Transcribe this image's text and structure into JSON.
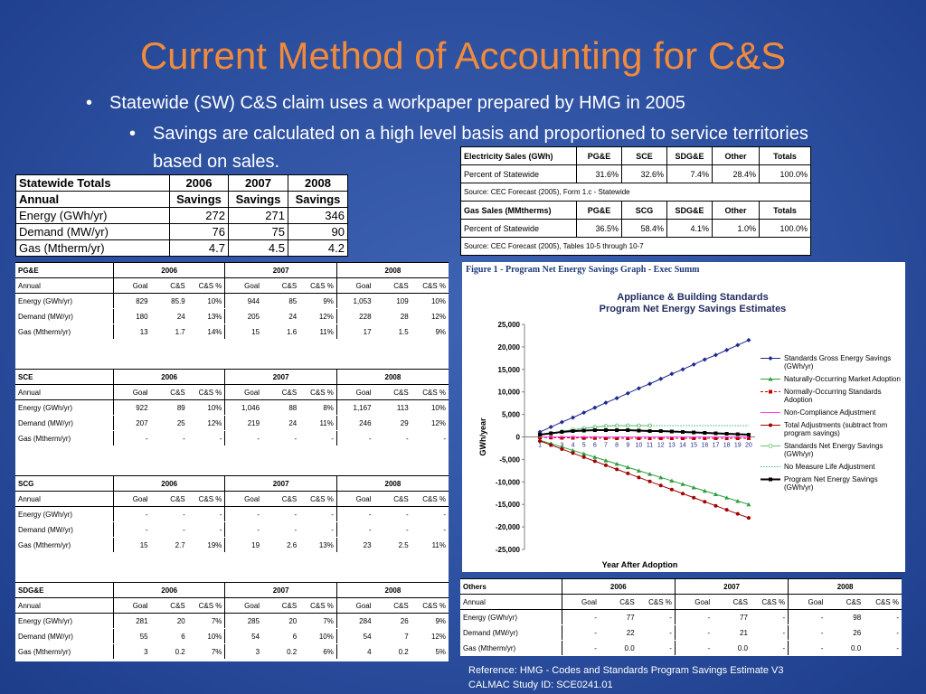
{
  "title": "Current Method of Accounting for C&S",
  "bullets": [
    "Statewide (SW) C&S claim uses a workpaper prepared by HMG in 2005",
    "Savings are calculated on a high level basis and proportioned to service territories based on sales."
  ],
  "statewide_table": {
    "header": [
      [
        "Statewide Totals",
        "2006",
        "2007",
        "2008"
      ],
      [
        "Annual",
        "Savings",
        "Savings",
        "Savings"
      ]
    ],
    "rows": [
      [
        "Energy (GWh/yr)",
        "272",
        "271",
        "346"
      ],
      [
        "Demand (MW/yr)",
        "76",
        "75",
        "90"
      ],
      [
        "Gas (Mtherm/yr)",
        "4.7",
        "4.5",
        "4.2"
      ]
    ]
  },
  "sales_tables": [
    {
      "header": [
        "Electricity Sales (GWh)",
        "PG&E",
        "SCE",
        "SDG&E",
        "Other",
        "Totals"
      ],
      "row": [
        "Percent of Statewide",
        "31.6%",
        "32.6%",
        "7.4%",
        "28.4%",
        "100.0%"
      ],
      "source": "Source:  CEC Forecast (2005), Form 1.c - Statewide"
    },
    {
      "header": [
        "Gas Sales (MMtherms)",
        "PG&E",
        "SCG",
        "SDG&E",
        "Other",
        "Totals"
      ],
      "row": [
        "Percent of Statewide",
        "36.5%",
        "58.4%",
        "4.1%",
        "1.0%",
        "100.0%"
      ],
      "source": "Source:  CEC Forecast (2005), Tables 10-5 through 10-7"
    }
  ],
  "utility_tables": [
    {
      "name": "PG&E",
      "years": [
        "2006",
        "2007",
        "2008"
      ],
      "subheader": [
        "Annual",
        "Goal",
        "C&S",
        "C&S %",
        "Goal",
        "C&S",
        "C&S %",
        "Goal",
        "C&S",
        "C&S %"
      ],
      "rows": [
        [
          "Energy (GWh/yr)",
          "829",
          "85.9",
          "10%",
          "944",
          "85",
          "9%",
          "1,053",
          "109",
          "10%"
        ],
        [
          "Demand (MW/yr)",
          "180",
          "24",
          "13%",
          "205",
          "24",
          "12%",
          "228",
          "28",
          "12%"
        ],
        [
          "Gas (Mtherm/yr)",
          "13",
          "1.7",
          "14%",
          "15",
          "1.6",
          "11%",
          "17",
          "1.5",
          "9%"
        ]
      ]
    },
    {
      "name": "SCE",
      "years": [
        "2006",
        "2007",
        "2008"
      ],
      "subheader": [
        "Annual",
        "Goal",
        "C&S",
        "C&S %",
        "Goal",
        "C&S",
        "C&S %",
        "Goal",
        "C&S",
        "C&S %"
      ],
      "rows": [
        [
          "Energy (GWh/yr)",
          "922",
          "89",
          "10%",
          "1,046",
          "88",
          "8%",
          "1,167",
          "113",
          "10%"
        ],
        [
          "Demand (MW/yr)",
          "207",
          "25",
          "12%",
          "219",
          "24",
          "11%",
          "246",
          "29",
          "12%"
        ],
        [
          "Gas (Mtherm/yr)",
          "-",
          "-",
          "-",
          "-",
          "-",
          "-",
          "-",
          "-",
          "-"
        ]
      ]
    },
    {
      "name": "SCG",
      "years": [
        "2006",
        "2007",
        "2008"
      ],
      "subheader": [
        "Annual",
        "Goal",
        "C&S",
        "C&S %",
        "Goal",
        "C&S",
        "C&S %",
        "Goal",
        "C&S",
        "C&S %"
      ],
      "rows": [
        [
          "Energy (GWh/yr)",
          "-",
          "-",
          "-",
          "-",
          "-",
          "-",
          "-",
          "-",
          "-"
        ],
        [
          "Demand (MW/yr)",
          "-",
          "-",
          "-",
          "-",
          "-",
          "-",
          "-",
          "-",
          "-"
        ],
        [
          "Gas (Mtherm/yr)",
          "15",
          "2.7",
          "19%",
          "19",
          "2.6",
          "13%",
          "23",
          "2.5",
          "11%"
        ]
      ]
    },
    {
      "name": "SDG&E",
      "years": [
        "2006",
        "2007",
        "2008"
      ],
      "subheader": [
        "Annual",
        "Goal",
        "C&S",
        "C&S %",
        "Goal",
        "C&S",
        "C&S %",
        "Goal",
        "C&S",
        "C&S %"
      ],
      "rows": [
        [
          "Energy (GWh/yr)",
          "281",
          "20",
          "7%",
          "285",
          "20",
          "7%",
          "284",
          "26",
          "9%"
        ],
        [
          "Demand (MW/yr)",
          "55",
          "6",
          "10%",
          "54",
          "6",
          "10%",
          "54",
          "7",
          "12%"
        ],
        [
          "Gas (Mtherm/yr)",
          "3",
          "0.2",
          "7%",
          "3",
          "0.2",
          "6%",
          "4",
          "0.2",
          "5%"
        ]
      ]
    }
  ],
  "others_table": {
    "name": "Others",
    "years": [
      "2006",
      "2007",
      "2008"
    ],
    "subheader": [
      "Annual",
      "Goal",
      "C&S",
      "C&S %",
      "Goal",
      "C&S",
      "C&S %",
      "Goal",
      "C&S",
      "C&S %"
    ],
    "rows": [
      [
        "Energy (GWh/yr)",
        "-",
        "77",
        "-",
        "-",
        "77",
        "-",
        "-",
        "98",
        "-"
      ],
      [
        "Demand (MW/yr)",
        "-",
        "22",
        "-",
        "-",
        "21",
        "-",
        "-",
        "26",
        "-"
      ],
      [
        "Gas (Mtherm/yr)",
        "-",
        "0.0",
        "-",
        "-",
        "0.0",
        "-",
        "-",
        "0.0",
        "-"
      ]
    ]
  },
  "chart": {
    "type": "line",
    "caption": "Figure 1 - Program Net Energy Savings Graph - Exec Summ",
    "title": [
      "Appliance & Building Standards",
      "Program Net Energy Savings Estimates"
    ],
    "y_label": "GWh/year",
    "x_label": "Year After Adoption",
    "categories": [
      "1",
      "2",
      "3",
      "4",
      "5",
      "6",
      "7",
      "8",
      "9",
      "10",
      "11",
      "12",
      "13",
      "14",
      "15",
      "16",
      "17",
      "18",
      "19",
      "20"
    ],
    "ylim": [
      -25000,
      25000
    ],
    "yticks": [
      {
        "value": -25000,
        "label": "-25,000"
      },
      {
        "value": -20000,
        "label": "-20,000"
      },
      {
        "value": -15000,
        "label": "-15,000"
      },
      {
        "value": -10000,
        "label": "-10,000"
      },
      {
        "value": -5000,
        "label": "-5,000"
      },
      0,
      {
        "value": 5000,
        "label": "5,000"
      },
      {
        "value": 10000,
        "label": "10,000"
      },
      {
        "value": 15000,
        "label": "15,000"
      },
      {
        "value": 20000,
        "label": "20,000"
      },
      {
        "value": 25000,
        "label": "25,000"
      }
    ],
    "grid": false,
    "series": [
      {
        "name": "Standards Gross Energy Savings (GWh/yr)",
        "color": "#1f2a8f",
        "marker": "diamond",
        "dash": "solid",
        "values": [
          1100,
          2200,
          3300,
          4300,
          5400,
          6500,
          7600,
          8600,
          9700,
          10800,
          11800,
          12900,
          14000,
          15000,
          16100,
          17200,
          18200,
          19300,
          20400,
          21500
        ]
      },
      {
        "name": "Naturally-Occurring Market Adoption",
        "color": "#2e9e3e",
        "marker": "triangle",
        "dash": "solid",
        "values": [
          -750,
          -1500,
          -2250,
          -3000,
          -3750,
          -4500,
          -5250,
          -6000,
          -6750,
          -7500,
          -8250,
          -9000,
          -9750,
          -10500,
          -11250,
          -12000,
          -12750,
          -13500,
          -14250,
          -15000
        ]
      },
      {
        "name": "Normally-Occurring Standards Adoption",
        "color": "#c00000",
        "marker": "square",
        "dash": "dashed",
        "values": [
          -100,
          -150,
          -200,
          -200,
          -250,
          -250,
          -300,
          -300,
          -300,
          -300,
          -300,
          -300,
          -300,
          -300,
          -300,
          -300,
          -300,
          -300,
          -300,
          -300
        ]
      },
      {
        "name": "Non-Compliance Adjustment",
        "color": "#ff40ff",
        "marker": "none",
        "dash": "solid",
        "values": [
          0,
          0,
          0,
          0,
          0,
          0,
          0,
          0,
          0,
          0,
          0,
          0,
          0,
          0,
          0,
          0,
          0,
          0,
          0,
          0
        ]
      },
      {
        "name": "Total Adjustments (subtract from program savings)",
        "color": "#a00000",
        "marker": "circle",
        "dash": "solid",
        "values": [
          -900,
          -1800,
          -2700,
          -3600,
          -4500,
          -5400,
          -6300,
          -7200,
          -8100,
          -9000,
          -9900,
          -10800,
          -11700,
          -12600,
          -13500,
          -14400,
          -15300,
          -16200,
          -17100,
          -18000
        ]
      },
      {
        "name": "Standards Net Energy Savings (GWh/yr)",
        "color": "#6cc070",
        "marker": "open-circle",
        "dash": "solid",
        "values": [
          400,
          800,
          1200,
          1600,
          1900,
          2200,
          2400,
          2500,
          2500,
          2500,
          2500,
          null,
          null,
          null,
          null,
          null,
          null,
          null,
          null,
          null
        ]
      },
      {
        "name": "No Measure Life Adjustment",
        "color": "#3cb371",
        "marker": "none",
        "dash": "dotted",
        "values": [
          400,
          800,
          1200,
          1600,
          1900,
          2200,
          2400,
          2500,
          2500,
          2500,
          2500,
          2500,
          2500,
          2500,
          2500,
          2500,
          2500,
          2500,
          2500,
          2500
        ]
      },
      {
        "name": "Program Net Energy Savings (GWh/yr)",
        "color": "#000000",
        "marker": "square",
        "dash": "solid",
        "values": [
          500,
          800,
          1100,
          1300,
          1400,
          1500,
          1500,
          1500,
          1500,
          1400,
          1300,
          1300,
          1200,
          1100,
          1000,
          900,
          800,
          700,
          600,
          500
        ]
      }
    ]
  },
  "reference": [
    "Reference: HMG - Codes and Standards Program Savings Estimate  V3",
    "CALMAC Study ID: SCE0241.01"
  ]
}
